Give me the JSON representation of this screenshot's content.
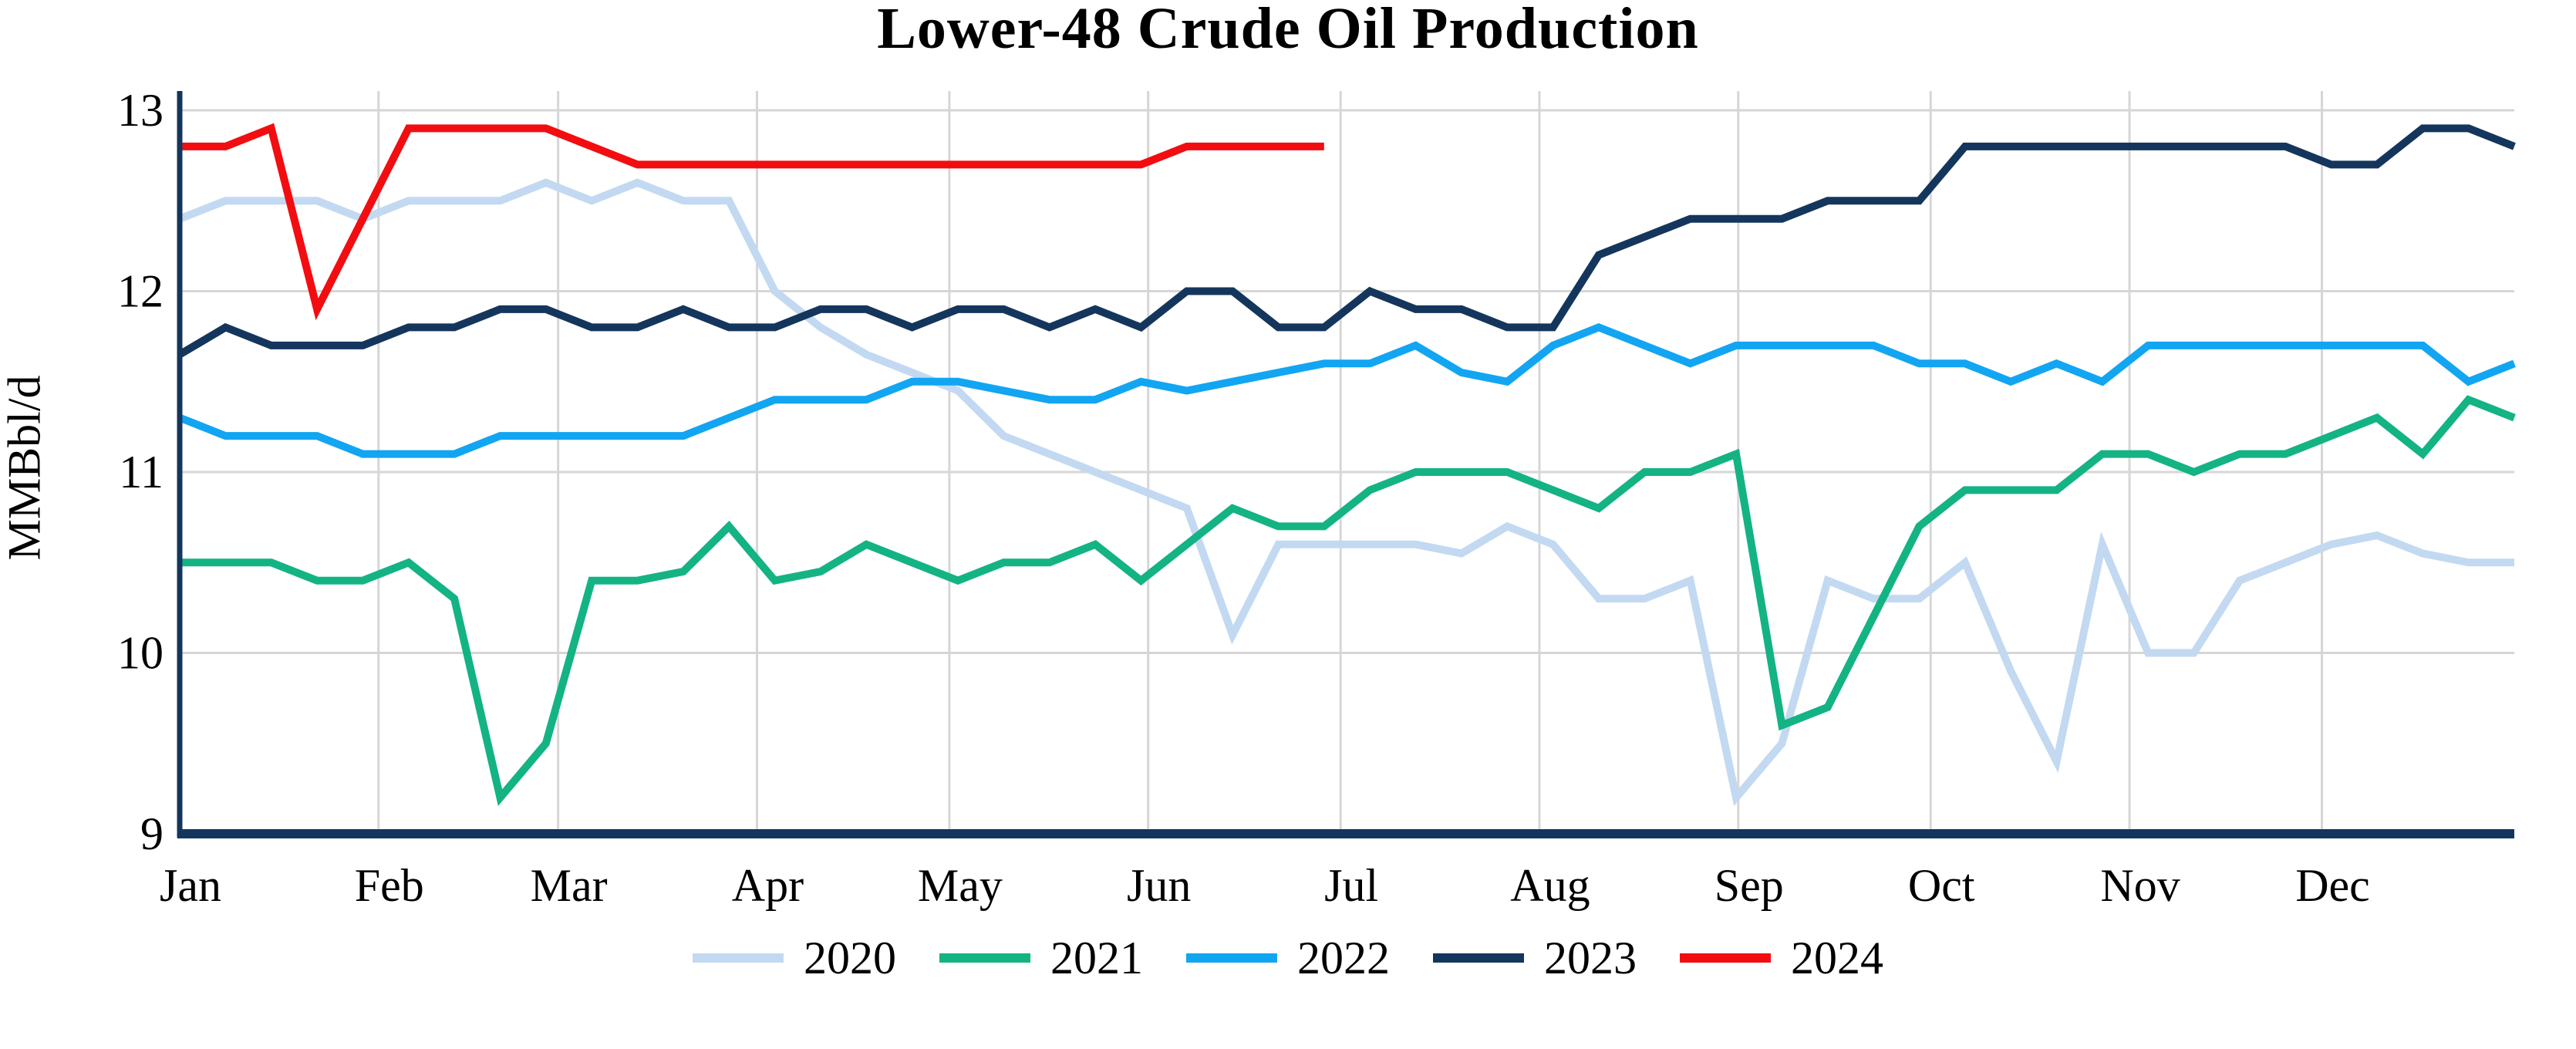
{
  "chart_data": {
    "type": "line",
    "title": "Lower-48 Crude Oil Production",
    "ylabel": "MMBbl/d",
    "ylim": [
      9,
      13.1
    ],
    "y_ticks": [
      9,
      10,
      11,
      12,
      13
    ],
    "x_tick_labels": [
      "Jan",
      "Feb",
      "Mar",
      "Apr",
      "May",
      "Jun",
      "Jul",
      "Aug",
      "Sep",
      "Oct",
      "Nov",
      "Dec"
    ],
    "month_start_days": [
      0,
      31,
      59,
      90,
      120,
      151,
      181,
      212,
      243,
      273,
      304,
      334
    ],
    "days_per_year": 364,
    "frequency": "weekly",
    "grid": true,
    "legend_position": "bottom",
    "axis_color": "#14365C",
    "gridline_color": "#D6D6D6",
    "text_color": "#000000",
    "series": [
      {
        "name": "2020",
        "color": "#C2D9F1",
        "values": [
          12.4,
          12.5,
          12.5,
          12.5,
          12.4,
          12.5,
          12.5,
          12.5,
          12.6,
          12.5,
          12.6,
          12.5,
          12.5,
          12.0,
          11.8,
          11.65,
          11.55,
          11.45,
          11.2,
          11.1,
          11.0,
          10.9,
          10.8,
          10.1,
          10.6,
          10.6,
          10.6,
          10.6,
          10.55,
          10.7,
          10.6,
          10.3,
          10.3,
          10.4,
          9.2,
          9.5,
          10.4,
          10.3,
          10.3,
          10.5,
          9.9,
          9.4,
          10.6,
          10.0,
          10.0,
          10.4,
          10.5,
          10.6,
          10.65,
          10.55,
          10.5,
          10.5
        ]
      },
      {
        "name": "2021",
        "color": "#14B384",
        "values": [
          10.5,
          10.5,
          10.5,
          10.4,
          10.4,
          10.5,
          10.3,
          9.2,
          9.5,
          10.4,
          10.4,
          10.45,
          10.7,
          10.4,
          10.45,
          10.6,
          10.5,
          10.4,
          10.5,
          10.5,
          10.6,
          10.4,
          10.6,
          10.8,
          10.7,
          10.7,
          10.9,
          11.0,
          11.0,
          11.0,
          10.9,
          10.8,
          11.0,
          11.0,
          11.1,
          9.6,
          9.7,
          10.2,
          10.7,
          10.9,
          10.9,
          10.9,
          11.1,
          11.1,
          11.0,
          11.1,
          11.1,
          11.2,
          11.3,
          11.1,
          11.4,
          11.3
        ]
      },
      {
        "name": "2022",
        "color": "#12A5F2",
        "values": [
          11.3,
          11.2,
          11.2,
          11.2,
          11.1,
          11.1,
          11.1,
          11.2,
          11.2,
          11.2,
          11.2,
          11.2,
          11.3,
          11.4,
          11.4,
          11.4,
          11.5,
          11.5,
          11.45,
          11.4,
          11.4,
          11.5,
          11.45,
          11.5,
          11.55,
          11.6,
          11.6,
          11.7,
          11.55,
          11.5,
          11.7,
          11.8,
          11.7,
          11.6,
          11.7,
          11.7,
          11.7,
          11.7,
          11.6,
          11.6,
          11.5,
          11.6,
          11.5,
          11.7,
          11.7,
          11.7,
          11.7,
          11.7,
          11.7,
          11.7,
          11.5,
          11.6
        ]
      },
      {
        "name": "2023",
        "color": "#14365C",
        "values": [
          11.65,
          11.8,
          11.7,
          11.7,
          11.7,
          11.8,
          11.8,
          11.9,
          11.9,
          11.8,
          11.8,
          11.9,
          11.8,
          11.8,
          11.9,
          11.9,
          11.8,
          11.9,
          11.9,
          11.8,
          11.9,
          11.8,
          12.0,
          12.0,
          11.8,
          11.8,
          12.0,
          11.9,
          11.9,
          11.8,
          11.8,
          12.2,
          12.3,
          12.4,
          12.4,
          12.4,
          12.5,
          12.5,
          12.5,
          12.8,
          12.8,
          12.8,
          12.8,
          12.8,
          12.8,
          12.8,
          12.8,
          12.7,
          12.7,
          12.9,
          12.9,
          12.8
        ]
      },
      {
        "name": "2024",
        "color": "#F20D11",
        "values": [
          12.8,
          12.8,
          12.9,
          11.9,
          12.4,
          12.9,
          12.9,
          12.9,
          12.9,
          12.8,
          12.7,
          12.7,
          12.7,
          12.7,
          12.7,
          12.7,
          12.7,
          12.7,
          12.7,
          12.7,
          12.7,
          12.7,
          12.8,
          12.8,
          12.8,
          12.8
        ]
      }
    ]
  }
}
